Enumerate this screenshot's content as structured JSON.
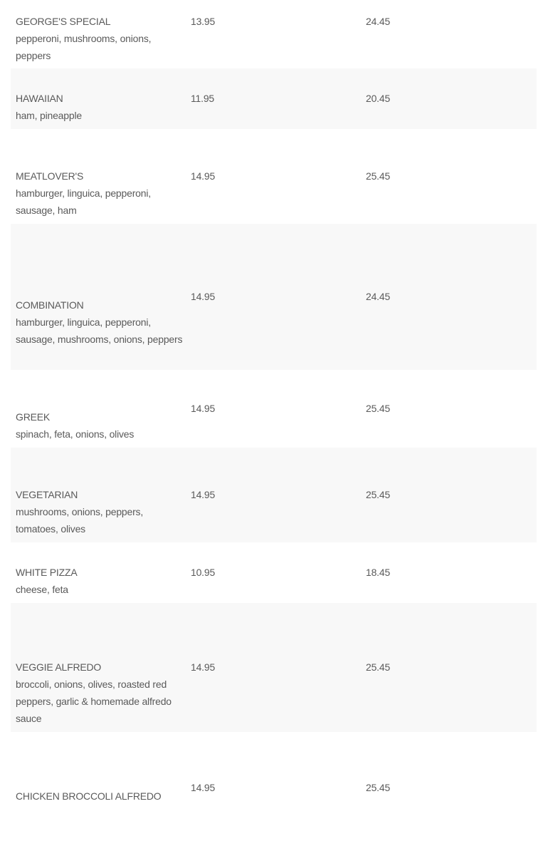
{
  "menu": {
    "items": [
      {
        "name": "GEORGE'S SPECIAL",
        "description": "pepperoni, mushrooms, onions, peppers",
        "price_small": "13.95",
        "price_large": "24.45"
      },
      {
        "name": "HAWAIIAN",
        "description": "ham, pineapple",
        "price_small": "11.95",
        "price_large": "20.45"
      },
      {
        "name": "MEATLOVER'S",
        "description": "hamburger, linguica, pepperoni, sausage, ham",
        "price_small": "14.95",
        "price_large": "25.45"
      },
      {
        "name": "COMBINATION",
        "description": "hamburger, linguica, pepperoni, sausage, mushrooms, onions, peppers",
        "price_small": "14.95",
        "price_large": "24.45"
      },
      {
        "name": "GREEK",
        "description": "spinach, feta, onions, olives",
        "price_small": "14.95",
        "price_large": "25.45"
      },
      {
        "name": "VEGETARIAN",
        "description": "mushrooms, onions, peppers, tomatoes, olives",
        "price_small": "14.95",
        "price_large": "25.45"
      },
      {
        "name": "WHITE PIZZA",
        "description": "cheese, feta",
        "price_small": "10.95",
        "price_large": "18.45"
      },
      {
        "name": "VEGGIE ALFREDO",
        "description": "broccoli, onions, olives, roasted red peppers, garlic & homemade alfredo sauce",
        "price_small": "14.95",
        "price_large": "25.45"
      },
      {
        "name": "CHICKEN BROCCOLI ALFREDO",
        "description": "",
        "price_small": "14.95",
        "price_large": "25.45"
      }
    ]
  },
  "colors": {
    "text": "#5a5a5a",
    "alt_row": "#f8f8f8"
  }
}
